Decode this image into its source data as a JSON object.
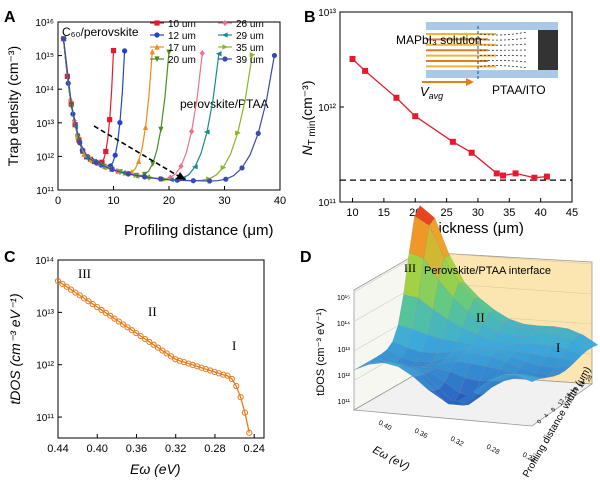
{
  "panel_labels": {
    "a": "A",
    "b": "B",
    "c": "C",
    "d": "D"
  },
  "chart_data": [
    {
      "panel": "A",
      "type": "line",
      "ylabel": "Trap density (cm⁻³)",
      "xlabel": "Profiling distance (μm)",
      "x_ticks": [
        "0",
        "10",
        "20",
        "30",
        "40"
      ],
      "y_ticks": [
        "10¹¹",
        "10¹²",
        "10¹³",
        "10¹⁴",
        "10¹⁵",
        "10¹⁶"
      ],
      "xlim": [
        0,
        40
      ],
      "ylim_log10": [
        11,
        16
      ],
      "yscale": "log",
      "annotations": {
        "top_left": "C₆₀/perovskite",
        "right": "perovskite/PTAA"
      },
      "legend_placement": "top-right",
      "series": [
        {
          "name": "10 um",
          "color": "#e8192c",
          "marker": "square",
          "thickness": 10
        },
        {
          "name": "12 um",
          "color": "#2244cc",
          "marker": "circle",
          "thickness": 12
        },
        {
          "name": "17 um",
          "color": "#f08a1c",
          "marker": "triangle-up",
          "thickness": 17
        },
        {
          "name": "20 um",
          "color": "#4c8c1c",
          "marker": "triangle-down",
          "thickness": 20
        },
        {
          "name": "26 um",
          "color": "#f07088",
          "marker": "diamond",
          "thickness": 26
        },
        {
          "name": "29 um",
          "color": "#1a8a8a",
          "marker": "triangle-left",
          "thickness": 29
        },
        {
          "name": "35 um",
          "color": "#8ab428",
          "marker": "triangle-right",
          "thickness": 35
        },
        {
          "name": "39 um",
          "color": "#3a4ab0",
          "marker": "hexagon",
          "thickness": 39
        }
      ]
    },
    {
      "panel": "B",
      "type": "line",
      "ylabel": "Nₜ min (cm⁻³)",
      "ylabel_main": "N",
      "ylabel_sub": "T min",
      "ylabel_unit": "(cm⁻³)",
      "xlabel": "Thickness (μm)",
      "x_ticks": [
        "10",
        "15",
        "20",
        "25",
        "30",
        "35",
        "40",
        "45"
      ],
      "y_ticks": [
        "10¹¹",
        "10¹²",
        "10¹³"
      ],
      "xlim": [
        8,
        45
      ],
      "ylim_log10": [
        11,
        13
      ],
      "yscale": "log",
      "x": [
        10,
        12,
        17,
        20,
        26,
        29,
        33,
        34,
        36,
        39,
        41
      ],
      "y": [
        3200000000000.0,
        2400000000000.0,
        1250000000000.0,
        800000000000.0,
        430000000000.0,
        330000000000.0,
        200000000000.0,
        190000000000.0,
        200000000000.0,
        180000000000.0,
        185000000000.0
      ],
      "baseline": 170000000000.0,
      "inset": {
        "solution_label": "MAPbI₃ solution",
        "velocity_label": "V",
        "velocity_sub": "avg",
        "substrate_label": "PTAA/ITO"
      },
      "color": "#e8192c"
    },
    {
      "panel": "C",
      "type": "line",
      "ylabel": "tDOS (cm⁻³ eV⁻¹)",
      "xlabel": "Eω (eV)",
      "x_ticks": [
        "0.44",
        "0.40",
        "0.36",
        "0.32",
        "0.28",
        "0.24"
      ],
      "y_ticks": [
        "10¹¹",
        "10¹²",
        "10¹³",
        "10¹⁴"
      ],
      "xlim": [
        0.44,
        0.23
      ],
      "ylim_log10": [
        10.6,
        14
      ],
      "yscale": "log",
      "region_labels": [
        "III",
        "II",
        "I"
      ],
      "color": "#e87c1c"
    },
    {
      "panel": "D",
      "type": "surface3d",
      "zlabel": "tDOS (cm⁻³ eV⁻¹)",
      "xlabel": "Eω (eV)",
      "ylabel": "Profiling distance width (μm)",
      "title": "Perovskite/PTAA interface",
      "z_ticks": [
        "10¹¹",
        "10¹²",
        "10¹³",
        "10¹⁴",
        "10¹⁵"
      ],
      "x_ticks": [
        "0.40",
        "0.36",
        "0.32",
        "0.28",
        "0.24"
      ],
      "y_ticks": [
        "0",
        "4",
        "8",
        "12",
        "16",
        "20",
        "24",
        "28"
      ],
      "region_labels": [
        "III",
        "II",
        "I"
      ]
    }
  ]
}
